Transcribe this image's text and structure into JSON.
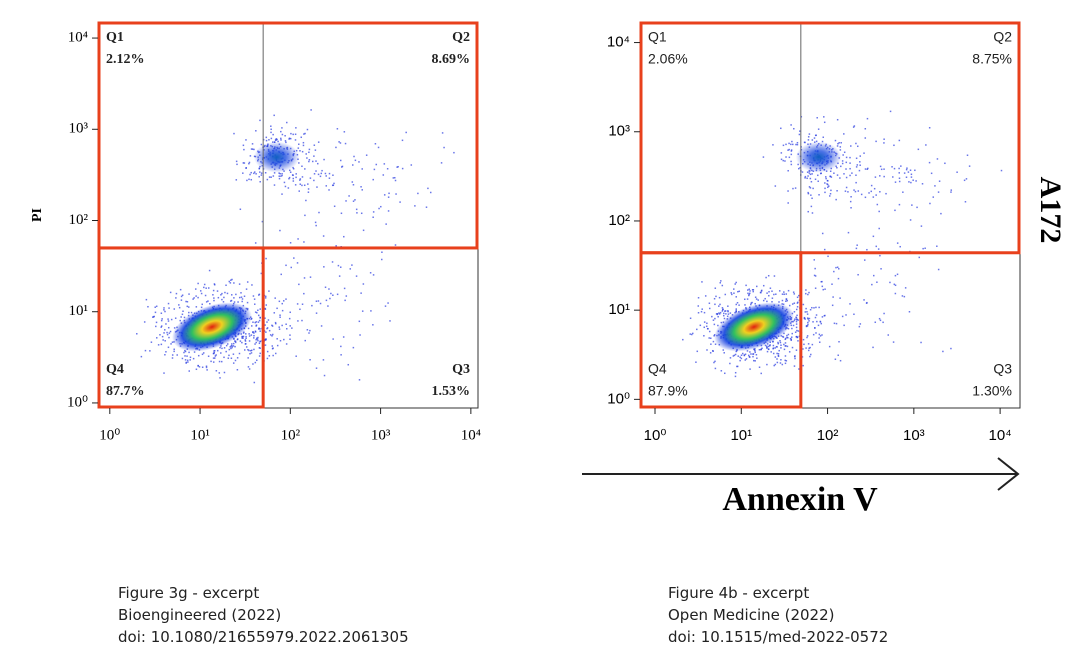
{
  "chart_data": [
    {
      "type": "scatter",
      "scale": "log",
      "font": "serif",
      "ylabel": "PI",
      "xlim": [
        0.74,
        12000
      ],
      "ylim": [
        0.88,
        15000
      ],
      "xticks": [
        {
          "value": 1,
          "label": "10⁰"
        },
        {
          "value": 10,
          "label": "10¹"
        },
        {
          "value": 100,
          "label": "10²"
        },
        {
          "value": 1000,
          "label": "10³"
        },
        {
          "value": 10000,
          "label": "10⁴"
        }
      ],
      "yticks": [
        {
          "value": 1,
          "label": "10⁰"
        },
        {
          "value": 10,
          "label": "10¹"
        },
        {
          "value": 100,
          "label": "10²"
        },
        {
          "value": 1000,
          "label": "10³"
        },
        {
          "value": 10000,
          "label": "10⁴"
        }
      ],
      "quadrant_x": 50,
      "quadrant_y": 50,
      "gate_color": "#e8401c",
      "quadrants": {
        "names": [
          "Q1",
          "Q2",
          "Q3",
          "Q4"
        ],
        "values": [
          2.12,
          8.69,
          1.53,
          87.7
        ],
        "value_labels": [
          "2.12%",
          "8.69%",
          "1.53%",
          "87.7%"
        ]
      }
    },
    {
      "type": "scatter",
      "scale": "log",
      "font": "sans",
      "xlabel": "Annexin V",
      "side_label": "A172",
      "xlim": [
        0.67,
        17000
      ],
      "ylim": [
        0.8,
        17000
      ],
      "xticks": [
        {
          "value": 1,
          "label": "10⁰"
        },
        {
          "value": 10,
          "label": "10¹"
        },
        {
          "value": 100,
          "label": "10²"
        },
        {
          "value": 1000,
          "label": "10³"
        },
        {
          "value": 10000,
          "label": "10⁴"
        }
      ],
      "yticks": [
        {
          "value": 1,
          "label": "10⁰"
        },
        {
          "value": 10,
          "label": "10¹"
        },
        {
          "value": 100,
          "label": "10²"
        },
        {
          "value": 1000,
          "label": "10³"
        },
        {
          "value": 10000,
          "label": "10⁴"
        }
      ],
      "quadrant_x": 49,
      "quadrant_y": 44,
      "gate_color": "#e8401c",
      "quadrants": {
        "names": [
          "Q1",
          "Q2",
          "Q3",
          "Q4"
        ],
        "values": [
          2.06,
          8.75,
          1.3,
          87.9
        ],
        "value_labels": [
          "2.06%",
          "8.75%",
          "1.30%",
          "87.9%"
        ]
      }
    }
  ],
  "captions": [
    [
      "Figure 3g - excerpt",
      "Bioengineered (2022)",
      "doi: 10.1080/21655979.2022.2061305"
    ],
    [
      "Figure 4b - excerpt",
      "Open Medicine (2022)",
      "doi: 10.1515/med-2022-0572"
    ]
  ]
}
